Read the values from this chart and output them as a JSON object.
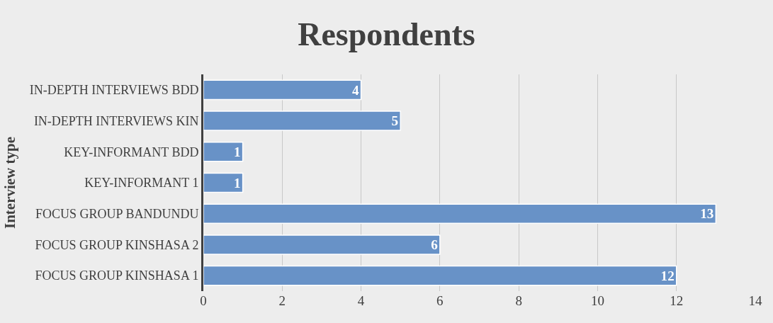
{
  "chart_data": {
    "type": "bar",
    "orientation": "horizontal",
    "title": "Respondents",
    "ylabel": "Interview type",
    "categories": [
      "IN-DEPTH INTERVIEWS BDD",
      "IN-DEPTH INTERVIEWS KIN",
      "KEY-INFORMANT BDD",
      "KEY-INFORMANT 1",
      "FOCUS GROUP BANDUNDU",
      "FOCUS GROUP KINSHASA 2",
      "FOCUS GROUP KINSHASA 1"
    ],
    "values": [
      4,
      5,
      1,
      1,
      13,
      6,
      12
    ],
    "color": "#6892c7",
    "xlim": [
      0,
      14
    ],
    "xticks": [
      0,
      2,
      4,
      6,
      8,
      10,
      12,
      14
    ],
    "grid": "x",
    "data_labels": true
  }
}
